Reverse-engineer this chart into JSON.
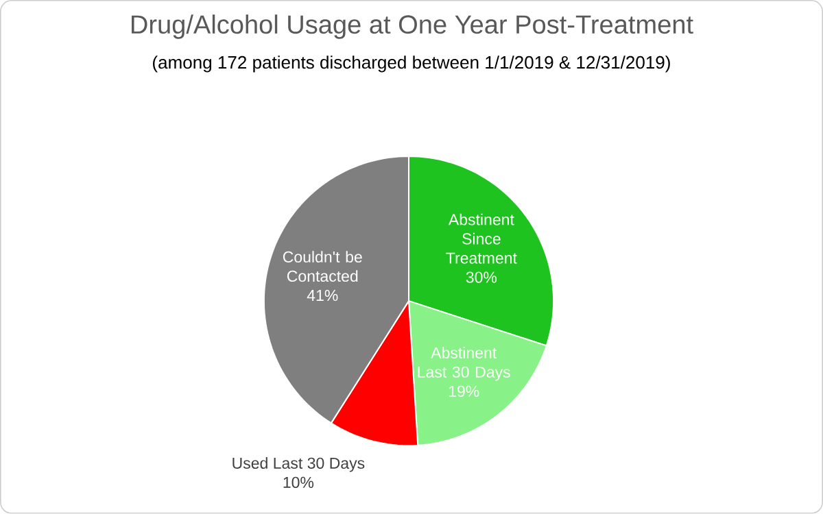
{
  "chart_data": {
    "type": "pie",
    "title": "Drug/Alcohol Usage at One Year Post-Treatment",
    "subtitle": "(among 172 patients discharged between 1/1/2019 & 12/31/2019)",
    "categories": [
      "Abstinent Since Treatment",
      "Abstinent Last 30 Days",
      "Used Last 30 Days",
      "Couldn't be Contacted"
    ],
    "values": [
      30,
      19,
      10,
      41
    ],
    "value_labels": [
      "30%",
      "19%",
      "10%",
      "41%"
    ],
    "colors": [
      "#1fc31f",
      "#88f288",
      "#ff0000",
      "#7f7f7f"
    ]
  }
}
